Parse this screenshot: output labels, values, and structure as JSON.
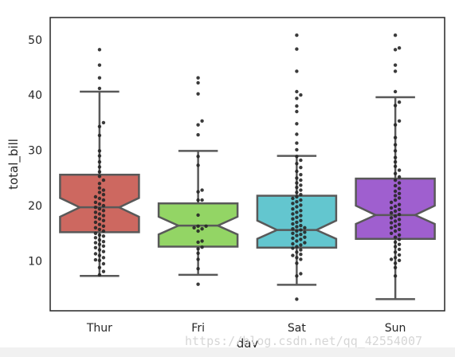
{
  "chart_data": {
    "type": "box",
    "notched": true,
    "xlabel": "day",
    "ylabel": "total_bill",
    "ylim": [
      1,
      54
    ],
    "yticks": [
      10,
      20,
      30,
      40,
      50
    ],
    "ytick_labels": [
      "10",
      "20",
      "30",
      "40",
      "50"
    ],
    "grid": false,
    "legend": "none",
    "categories": [
      "Thur",
      "Fri",
      "Sat",
      "Sun"
    ],
    "colors": [
      "#cd6860",
      "#93d565",
      "#63c6cf",
      "#9f5fcf"
    ],
    "box_edge_color": "#595959",
    "point_color": "#262626",
    "boxes": [
      {
        "name": "Thur",
        "whisker_low": 7.3,
        "q1": 15.2,
        "median": 19.7,
        "q3": 25.6,
        "whisker_high": 40.6,
        "notch_low": 18.0,
        "notch_high": 21.4
      },
      {
        "name": "Fri",
        "whisker_low": 7.5,
        "q1": 12.6,
        "median": 16.4,
        "q3": 20.4,
        "whisker_high": 29.9,
        "notch_low": 14.8,
        "notch_high": 18.0
      },
      {
        "name": "Sat",
        "whisker_low": 5.7,
        "q1": 12.4,
        "median": 15.6,
        "q3": 21.8,
        "whisker_high": 29.0,
        "notch_low": 14.0,
        "notch_high": 17.3
      },
      {
        "name": "Sun",
        "whisker_low": 3.1,
        "q1": 14.0,
        "median": 18.3,
        "q3": 24.9,
        "whisker_high": 39.6,
        "notch_low": 16.7,
        "notch_high": 20.0
      }
    ],
    "points": {
      "Thur": [
        7.5,
        8.1,
        8.8,
        9.5,
        10.1,
        10.2,
        10.6,
        11.0,
        11.3,
        11.7,
        12.0,
        12.4,
        12.7,
        13.0,
        13.3,
        13.5,
        13.8,
        14.2,
        14.5,
        14.7,
        15.0,
        15.4,
        15.7,
        16.0,
        16.3,
        16.6,
        17.0,
        17.3,
        17.6,
        17.9,
        18.2,
        18.5,
        18.8,
        19.1,
        19.4,
        19.7,
        20.0,
        20.3,
        20.6,
        21.0,
        21.3,
        21.6,
        22.0,
        22.4,
        22.8,
        23.2,
        24.0,
        24.6,
        25.3,
        26.1,
        27.0,
        27.9,
        29.0,
        29.9,
        32.7,
        34.3,
        35.0,
        41.2,
        43.1,
        45.4,
        48.2
      ],
      "Fri": [
        5.8,
        8.6,
        10.3,
        11.4,
        12.2,
        12.5,
        13.4,
        13.6,
        15.4,
        15.8,
        16.0,
        16.3,
        16.3,
        18.3,
        21.0,
        21.0,
        22.5,
        22.8,
        27.3,
        28.9,
        32.8,
        34.6,
        35.3,
        40.2,
        42.2,
        43.1
      ],
      "Sat": [
        3.1,
        7.3,
        7.7,
        9.6,
        10.3,
        10.6,
        11.0,
        11.2,
        11.6,
        12.0,
        12.3,
        12.6,
        12.9,
        13.1,
        13.3,
        13.6,
        13.9,
        14.1,
        14.3,
        14.6,
        14.8,
        15.0,
        15.2,
        15.4,
        15.6,
        15.8,
        16.0,
        16.2,
        16.4,
        16.7,
        17.0,
        17.3,
        17.6,
        17.9,
        18.2,
        18.5,
        18.8,
        19.1,
        19.4,
        19.8,
        20.1,
        20.4,
        20.7,
        21.0,
        21.3,
        21.6,
        22.0,
        22.4,
        22.8,
        23.3,
        23.7,
        24.1,
        24.6,
        25.0,
        25.6,
        26.2,
        26.9,
        27.6,
        28.2,
        28.9,
        30.1,
        31.3,
        32.9,
        34.8,
        37.0,
        38.0,
        39.4,
        40.0,
        40.6,
        44.3,
        48.3,
        50.8
      ],
      "Sun": [
        7.3,
        8.8,
        9.6,
        10.1,
        10.3,
        10.6,
        11.1,
        11.6,
        12.1,
        12.6,
        13.0,
        13.4,
        13.9,
        14.3,
        14.7,
        15.0,
        15.4,
        15.7,
        16.0,
        16.3,
        16.6,
        16.9,
        17.2,
        17.5,
        17.8,
        18.1,
        18.4,
        18.7,
        19.0,
        19.3,
        19.6,
        19.9,
        20.2,
        20.6,
        21.0,
        21.4,
        21.8,
        22.2,
        22.6,
        23.1,
        23.6,
        24.1,
        24.6,
        25.2,
        25.8,
        26.4,
        27.1,
        27.9,
        28.7,
        29.9,
        31.0,
        32.3,
        34.6,
        35.3,
        38.1,
        38.7,
        40.6,
        44.3,
        45.4,
        48.2,
        48.5,
        50.8
      ]
    }
  },
  "watermark": "https://blog.csdn.net/qq_42554007"
}
